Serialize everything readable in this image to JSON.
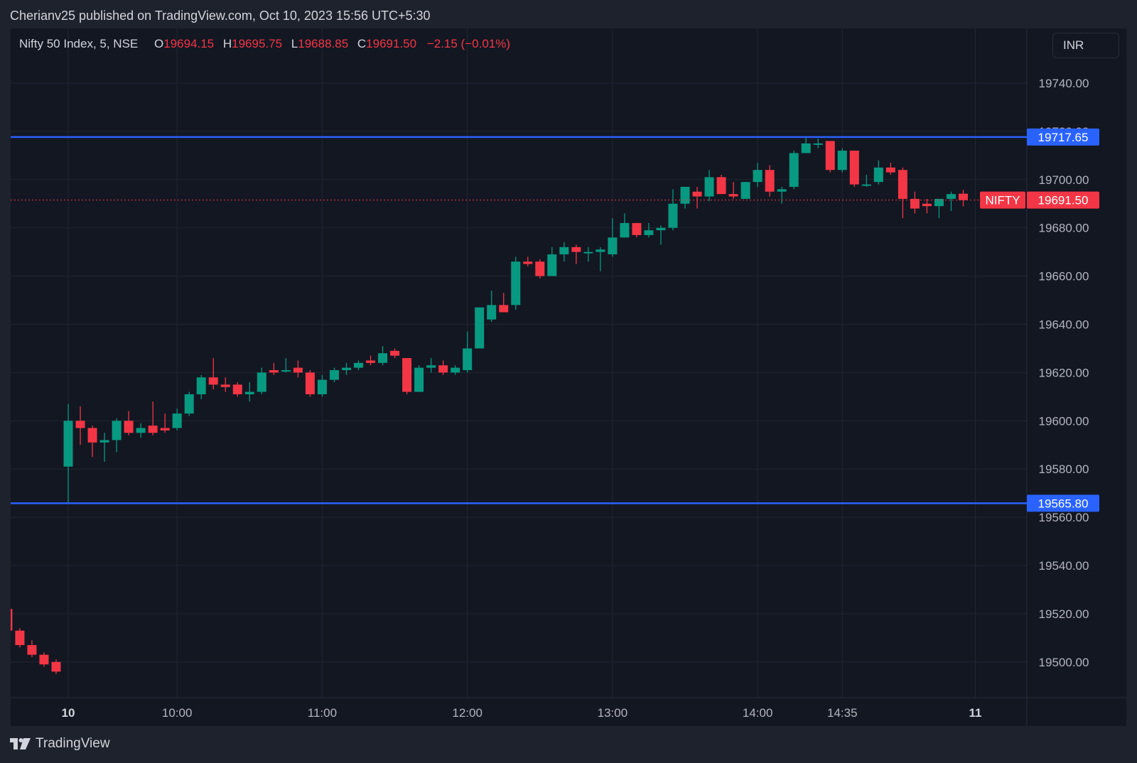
{
  "header": {
    "publish_line": "Cherianv25 published on TradingView.com, Oct 10, 2023 15:56 UTC+5:30"
  },
  "legend": {
    "symbol": "Nifty 50 Index, 5, NSE",
    "open_label": "O",
    "open": "19694.15",
    "high_label": "H",
    "high": "19695.75",
    "low_label": "L",
    "low": "19688.85",
    "close_label": "C",
    "close": "19691.50",
    "change": "−2.15 (−0.01%)"
  },
  "currency_button": "INR",
  "footer": {
    "brand": "TradingView"
  },
  "colors": {
    "up": "#089981",
    "down": "#f23645",
    "level_line": "#2962ff",
    "grid": "#222631",
    "background": "#131722",
    "text": "#d1d4dc"
  },
  "chart_data": {
    "type": "candlestick",
    "symbol": "NIFTY",
    "interval_minutes": 5,
    "ylim": [
      19490,
      19750
    ],
    "y_ticks": [
      "19740.00",
      "19720.00",
      "19700.00",
      "19680.00",
      "19660.00",
      "19640.00",
      "19620.00",
      "19600.00",
      "19580.00",
      "19560.00",
      "19540.00",
      "19520.00",
      "19500.00"
    ],
    "x_labels": [
      {
        "label": "10",
        "time": "09:15",
        "bold": true
      },
      {
        "label": "10:00",
        "time": "10:00",
        "bold": false
      },
      {
        "label": "11:00",
        "time": "11:00",
        "bold": false
      },
      {
        "label": "12:00",
        "time": "12:00",
        "bold": false
      },
      {
        "label": "13:00",
        "time": "13:00",
        "bold": false
      },
      {
        "label": "14:00",
        "time": "14:00",
        "bold": false
      },
      {
        "label": "14:35",
        "time": "14:35",
        "bold": false
      },
      {
        "label": "11",
        "time": "next-09:15",
        "bold": true
      }
    ],
    "horizontal_levels": [
      {
        "value": 19717.65,
        "label": "19717.65"
      },
      {
        "value": 19565.8,
        "label": "19565.80"
      }
    ],
    "last_price": {
      "value": 19691.5,
      "label": "19691.50",
      "symbol_label": "NIFTY"
    },
    "previous_session": [
      {
        "time": "prev-15:00",
        "o": 19528,
        "h": 19528,
        "l": 19520,
        "c": 19521
      },
      {
        "time": "prev-15:05",
        "o": 19522,
        "h": 19524,
        "l": 19512,
        "c": 19513
      },
      {
        "time": "prev-15:10",
        "o": 19513,
        "h": 19514,
        "l": 19506,
        "c": 19507
      },
      {
        "time": "prev-15:15",
        "o": 19507,
        "h": 19509,
        "l": 19502,
        "c": 19503
      },
      {
        "time": "prev-15:20",
        "o": 19503,
        "h": 19504,
        "l": 19498,
        "c": 19499
      },
      {
        "time": "prev-15:25",
        "o": 19500,
        "h": 19501,
        "l": 19495,
        "c": 19496
      }
    ],
    "candles": [
      {
        "time": "09:15",
        "o": 19581,
        "h": 19607,
        "l": 19566,
        "c": 19600
      },
      {
        "time": "09:20",
        "o": 19600,
        "h": 19606,
        "l": 19590,
        "c": 19597
      },
      {
        "time": "09:25",
        "o": 19597,
        "h": 19598,
        "l": 19585,
        "c": 19591
      },
      {
        "time": "09:30",
        "o": 19591,
        "h": 19595,
        "l": 19583,
        "c": 19592
      },
      {
        "time": "09:35",
        "o": 19592,
        "h": 19601,
        "l": 19587,
        "c": 19600
      },
      {
        "time": "09:40",
        "o": 19600,
        "h": 19604,
        "l": 19594,
        "c": 19595
      },
      {
        "time": "09:45",
        "o": 19595,
        "h": 19599,
        "l": 19593,
        "c": 19597
      },
      {
        "time": "09:50",
        "o": 19598,
        "h": 19608,
        "l": 19594,
        "c": 19595
      },
      {
        "time": "09:55",
        "o": 19597,
        "h": 19603,
        "l": 19595,
        "c": 19596
      },
      {
        "time": "10:00",
        "o": 19597,
        "h": 19605,
        "l": 19596,
        "c": 19603
      },
      {
        "time": "10:05",
        "o": 19603,
        "h": 19612,
        "l": 19602,
        "c": 19611
      },
      {
        "time": "10:10",
        "o": 19611,
        "h": 19619,
        "l": 19609,
        "c": 19618
      },
      {
        "time": "10:15",
        "o": 19618,
        "h": 19626,
        "l": 19613,
        "c": 19615
      },
      {
        "time": "10:20",
        "o": 19615,
        "h": 19618,
        "l": 19612,
        "c": 19614
      },
      {
        "time": "10:25",
        "o": 19615,
        "h": 19616,
        "l": 19610,
        "c": 19611
      },
      {
        "time": "10:30",
        "o": 19611,
        "h": 19616,
        "l": 19608,
        "c": 19612
      },
      {
        "time": "10:35",
        "o": 19612,
        "h": 19622,
        "l": 19611,
        "c": 19620
      },
      {
        "time": "10:40",
        "o": 19621,
        "h": 19624,
        "l": 19619,
        "c": 19620
      },
      {
        "time": "10:45",
        "o": 19621,
        "h": 19626,
        "l": 19620,
        "c": 19621
      },
      {
        "time": "10:50",
        "o": 19622,
        "h": 19625,
        "l": 19618,
        "c": 19620
      },
      {
        "time": "10:55",
        "o": 19620,
        "h": 19621,
        "l": 19610,
        "c": 19611
      },
      {
        "time": "11:00",
        "o": 19611,
        "h": 19619,
        "l": 19610,
        "c": 19617
      },
      {
        "time": "11:05",
        "o": 19617,
        "h": 19622,
        "l": 19616,
        "c": 19621
      },
      {
        "time": "11:10",
        "o": 19621,
        "h": 19624,
        "l": 19619,
        "c": 19622
      },
      {
        "time": "11:15",
        "o": 19622,
        "h": 19625,
        "l": 19621,
        "c": 19624
      },
      {
        "time": "11:20",
        "o": 19625,
        "h": 19627,
        "l": 19623,
        "c": 19624
      },
      {
        "time": "11:25",
        "o": 19624,
        "h": 19631,
        "l": 19623,
        "c": 19628
      },
      {
        "time": "11:30",
        "o": 19629,
        "h": 19630,
        "l": 19626,
        "c": 19627
      },
      {
        "time": "11:35",
        "o": 19626,
        "h": 19626,
        "l": 19611,
        "c": 19612
      },
      {
        "time": "11:40",
        "o": 19612,
        "h": 19623,
        "l": 19612,
        "c": 19622
      },
      {
        "time": "11:45",
        "o": 19622,
        "h": 19626,
        "l": 19620,
        "c": 19623
      },
      {
        "time": "11:50",
        "o": 19623,
        "h": 19625,
        "l": 19619,
        "c": 19620
      },
      {
        "time": "11:55",
        "o": 19620,
        "h": 19623,
        "l": 19619,
        "c": 19622
      },
      {
        "time": "12:00",
        "o": 19621,
        "h": 19637,
        "l": 19620,
        "c": 19630
      },
      {
        "time": "12:05",
        "o": 19630,
        "h": 19647,
        "l": 19630,
        "c": 19647
      },
      {
        "time": "12:10",
        "o": 19642,
        "h": 19654,
        "l": 19641,
        "c": 19648
      },
      {
        "time": "12:15",
        "o": 19648,
        "h": 19653,
        "l": 19645,
        "c": 19645
      },
      {
        "time": "12:20",
        "o": 19648,
        "h": 19668,
        "l": 19646,
        "c": 19666
      },
      {
        "time": "12:25",
        "o": 19666,
        "h": 19668,
        "l": 19664,
        "c": 19665
      },
      {
        "time": "12:30",
        "o": 19666,
        "h": 19667,
        "l": 19659,
        "c": 19660
      },
      {
        "time": "12:35",
        "o": 19660,
        "h": 19672,
        "l": 19660,
        "c": 19669
      },
      {
        "time": "12:40",
        "o": 19669,
        "h": 19674,
        "l": 19666,
        "c": 19672
      },
      {
        "time": "12:45",
        "o": 19672,
        "h": 19673,
        "l": 19665,
        "c": 19670
      },
      {
        "time": "12:50",
        "o": 19670,
        "h": 19672,
        "l": 19666,
        "c": 19670
      },
      {
        "time": "12:55",
        "o": 19670,
        "h": 19672,
        "l": 19662,
        "c": 19671
      },
      {
        "time": "13:00",
        "o": 19669,
        "h": 19684,
        "l": 19668,
        "c": 19676
      },
      {
        "time": "13:05",
        "o": 19676,
        "h": 19686,
        "l": 19676,
        "c": 19682
      },
      {
        "time": "13:10",
        "o": 19682,
        "h": 19682,
        "l": 19676,
        "c": 19677
      },
      {
        "time": "13:15",
        "o": 19677,
        "h": 19682,
        "l": 19676,
        "c": 19679
      },
      {
        "time": "13:20",
        "o": 19679,
        "h": 19681,
        "l": 19673,
        "c": 19680
      },
      {
        "time": "13:25",
        "o": 19680,
        "h": 19696,
        "l": 19679,
        "c": 19690
      },
      {
        "time": "13:30",
        "o": 19690,
        "h": 19697,
        "l": 19688,
        "c": 19697
      },
      {
        "time": "13:35",
        "o": 19695,
        "h": 19697,
        "l": 19688,
        "c": 19693
      },
      {
        "time": "13:40",
        "o": 19693,
        "h": 19704,
        "l": 19691,
        "c": 19701
      },
      {
        "time": "13:45",
        "o": 19701,
        "h": 19702,
        "l": 19694,
        "c": 19694
      },
      {
        "time": "13:50",
        "o": 19694,
        "h": 19699,
        "l": 19692,
        "c": 19693
      },
      {
        "time": "13:55",
        "o": 19692,
        "h": 19699,
        "l": 19692,
        "c": 19699
      },
      {
        "time": "14:00",
        "o": 19699,
        "h": 19707,
        "l": 19697,
        "c": 19704
      },
      {
        "time": "14:05",
        "o": 19704,
        "h": 19706,
        "l": 19693,
        "c": 19695
      },
      {
        "time": "14:10",
        "o": 19695,
        "h": 19697,
        "l": 19690,
        "c": 19696
      },
      {
        "time": "14:15",
        "o": 19697,
        "h": 19712,
        "l": 19696,
        "c": 19711
      },
      {
        "time": "14:20",
        "o": 19711,
        "h": 19718,
        "l": 19711,
        "c": 19715
      },
      {
        "time": "14:25",
        "o": 19715,
        "h": 19717,
        "l": 19713,
        "c": 19715
      },
      {
        "time": "14:30",
        "o": 19716,
        "h": 19716,
        "l": 19703,
        "c": 19704
      },
      {
        "time": "14:35",
        "o": 19704,
        "h": 19713,
        "l": 19703,
        "c": 19712
      },
      {
        "time": "14:40",
        "o": 19712,
        "h": 19712,
        "l": 19697,
        "c": 19698
      },
      {
        "time": "14:45",
        "o": 19698,
        "h": 19702,
        "l": 19697,
        "c": 19698
      },
      {
        "time": "14:50",
        "o": 19699,
        "h": 19708,
        "l": 19698,
        "c": 19705
      },
      {
        "time": "14:55",
        "o": 19705,
        "h": 19707,
        "l": 19702,
        "c": 19703
      },
      {
        "time": "15:00",
        "o": 19704,
        "h": 19705,
        "l": 19684,
        "c": 19692
      },
      {
        "time": "15:05",
        "o": 19692,
        "h": 19695,
        "l": 19686,
        "c": 19688
      },
      {
        "time": "15:10",
        "o": 19690,
        "h": 19692,
        "l": 19686,
        "c": 19689
      },
      {
        "time": "15:15",
        "o": 19689,
        "h": 19692,
        "l": 19684,
        "c": 19692
      },
      {
        "time": "15:20",
        "o": 19692,
        "h": 19695,
        "l": 19687,
        "c": 19694
      },
      {
        "time": "15:25",
        "o": 19694.15,
        "h": 19695.75,
        "l": 19688.85,
        "c": 19691.5
      }
    ]
  }
}
